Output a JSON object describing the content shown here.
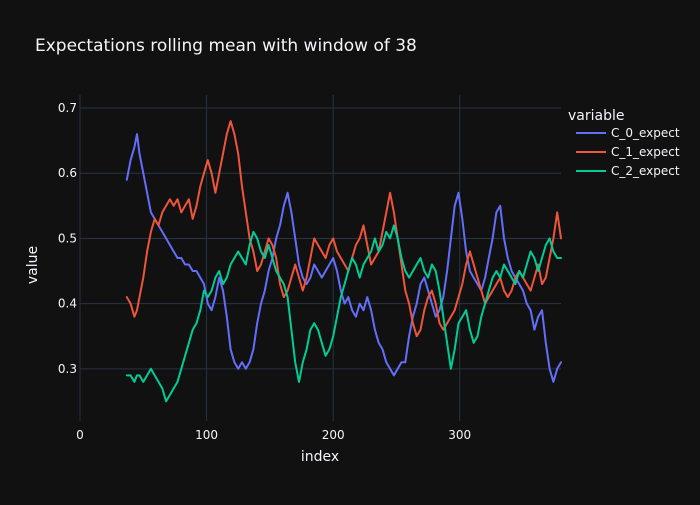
{
  "chart_data": {
    "type": "line",
    "title": "Expectations rolling mean with window of 38",
    "xlabel": "index",
    "ylabel": "value",
    "xlim": [
      0,
      380
    ],
    "ylim": [
      0.22,
      0.72
    ],
    "xticks": [
      0,
      100,
      200,
      300
    ],
    "xtick_labels": [
      "0",
      "100",
      "200",
      "300"
    ],
    "yticks": [
      0.3,
      0.4,
      0.5,
      0.6,
      0.7
    ],
    "ytick_labels": [
      "0.3",
      "0.4",
      "0.5",
      "0.6",
      "0.7"
    ],
    "grid": true,
    "legend": {
      "title": "variable",
      "placement": "right"
    },
    "series": [
      {
        "name": "C_0_expect",
        "color": "#636efa",
        "x": [
          37,
          40,
          43,
          45,
          47,
          50,
          53,
          56,
          59,
          62,
          65,
          68,
          71,
          74,
          77,
          80,
          83,
          86,
          89,
          92,
          95,
          98,
          101,
          104,
          107,
          110,
          113,
          116,
          119,
          122,
          125,
          128,
          131,
          134,
          137,
          140,
          143,
          146,
          149,
          152,
          155,
          158,
          161,
          164,
          167,
          170,
          173,
          176,
          179,
          182,
          185,
          188,
          191,
          194,
          197,
          200,
          203,
          206,
          209,
          212,
          215,
          218,
          221,
          224,
          227,
          230,
          233,
          236,
          239,
          242,
          245,
          248,
          251,
          254,
          257,
          260,
          263,
          266,
          269,
          272,
          275,
          278,
          281,
          284,
          287,
          290,
          293,
          296,
          299,
          302,
          305,
          308,
          311,
          314,
          317,
          320,
          323,
          326,
          329,
          332,
          335,
          338,
          341,
          344,
          347,
          350,
          353,
          356,
          359,
          362,
          365,
          368,
          371,
          374,
          377,
          380
        ],
        "y": [
          0.59,
          0.62,
          0.64,
          0.66,
          0.63,
          0.6,
          0.57,
          0.54,
          0.53,
          0.52,
          0.51,
          0.5,
          0.49,
          0.48,
          0.47,
          0.47,
          0.46,
          0.46,
          0.45,
          0.45,
          0.44,
          0.43,
          0.4,
          0.39,
          0.41,
          0.44,
          0.42,
          0.38,
          0.33,
          0.31,
          0.3,
          0.31,
          0.3,
          0.31,
          0.33,
          0.37,
          0.4,
          0.42,
          0.45,
          0.47,
          0.5,
          0.52,
          0.55,
          0.57,
          0.54,
          0.5,
          0.46,
          0.44,
          0.43,
          0.44,
          0.46,
          0.45,
          0.44,
          0.45,
          0.46,
          0.47,
          0.45,
          0.42,
          0.4,
          0.41,
          0.39,
          0.38,
          0.4,
          0.39,
          0.41,
          0.39,
          0.36,
          0.34,
          0.33,
          0.31,
          0.3,
          0.29,
          0.3,
          0.31,
          0.31,
          0.35,
          0.38,
          0.4,
          0.43,
          0.44,
          0.42,
          0.4,
          0.38,
          0.39,
          0.41,
          0.45,
          0.5,
          0.55,
          0.57,
          0.53,
          0.48,
          0.45,
          0.44,
          0.43,
          0.42,
          0.44,
          0.47,
          0.5,
          0.54,
          0.55,
          0.5,
          0.47,
          0.45,
          0.44,
          0.43,
          0.42,
          0.4,
          0.39,
          0.36,
          0.38,
          0.39,
          0.34,
          0.3,
          0.28,
          0.3,
          0.31
        ]
      },
      {
        "name": "C_1_expect",
        "color": "#ef553b",
        "x": [
          37,
          40,
          43,
          45,
          47,
          50,
          53,
          56,
          59,
          62,
          65,
          68,
          71,
          74,
          77,
          80,
          83,
          86,
          89,
          92,
          95,
          98,
          101,
          104,
          107,
          110,
          113,
          116,
          119,
          122,
          125,
          128,
          131,
          134,
          137,
          140,
          143,
          146,
          149,
          152,
          155,
          158,
          161,
          164,
          167,
          170,
          173,
          176,
          179,
          182,
          185,
          188,
          191,
          194,
          197,
          200,
          203,
          206,
          209,
          212,
          215,
          218,
          221,
          224,
          227,
          230,
          233,
          236,
          239,
          242,
          245,
          248,
          251,
          254,
          257,
          260,
          263,
          266,
          269,
          272,
          275,
          278,
          281,
          284,
          287,
          290,
          293,
          296,
          299,
          302,
          305,
          308,
          311,
          314,
          317,
          320,
          323,
          326,
          329,
          332,
          335,
          338,
          341,
          344,
          347,
          350,
          353,
          356,
          359,
          362,
          365,
          368,
          371,
          374,
          377,
          380
        ],
        "y": [
          0.41,
          0.4,
          0.38,
          0.39,
          0.41,
          0.44,
          0.48,
          0.51,
          0.53,
          0.52,
          0.54,
          0.55,
          0.56,
          0.55,
          0.56,
          0.54,
          0.55,
          0.56,
          0.53,
          0.55,
          0.58,
          0.6,
          0.62,
          0.6,
          0.57,
          0.6,
          0.63,
          0.66,
          0.68,
          0.66,
          0.63,
          0.58,
          0.54,
          0.5,
          0.48,
          0.45,
          0.46,
          0.48,
          0.5,
          0.49,
          0.47,
          0.43,
          0.41,
          0.42,
          0.44,
          0.46,
          0.44,
          0.42,
          0.44,
          0.47,
          0.5,
          0.49,
          0.48,
          0.47,
          0.49,
          0.5,
          0.48,
          0.47,
          0.46,
          0.45,
          0.47,
          0.49,
          0.5,
          0.52,
          0.49,
          0.46,
          0.47,
          0.48,
          0.51,
          0.54,
          0.57,
          0.54,
          0.5,
          0.46,
          0.42,
          0.4,
          0.37,
          0.35,
          0.36,
          0.39,
          0.41,
          0.42,
          0.4,
          0.37,
          0.36,
          0.37,
          0.38,
          0.39,
          0.41,
          0.43,
          0.46,
          0.48,
          0.46,
          0.44,
          0.42,
          0.4,
          0.41,
          0.42,
          0.43,
          0.44,
          0.42,
          0.41,
          0.42,
          0.44,
          0.45,
          0.44,
          0.43,
          0.42,
          0.44,
          0.46,
          0.43,
          0.44,
          0.47,
          0.5,
          0.54,
          0.5
        ]
      },
      {
        "name": "C_2_expect",
        "color": "#00cc96",
        "x": [
          37,
          40,
          43,
          45,
          47,
          50,
          53,
          56,
          59,
          62,
          65,
          68,
          71,
          74,
          77,
          80,
          83,
          86,
          89,
          92,
          95,
          98,
          101,
          104,
          107,
          110,
          113,
          116,
          119,
          122,
          125,
          128,
          131,
          134,
          137,
          140,
          143,
          146,
          149,
          152,
          155,
          158,
          161,
          164,
          167,
          170,
          173,
          176,
          179,
          182,
          185,
          188,
          191,
          194,
          197,
          200,
          203,
          206,
          209,
          212,
          215,
          218,
          221,
          224,
          227,
          230,
          233,
          236,
          239,
          242,
          245,
          248,
          251,
          254,
          257,
          260,
          263,
          266,
          269,
          272,
          275,
          278,
          281,
          284,
          287,
          290,
          293,
          296,
          299,
          302,
          305,
          308,
          311,
          314,
          317,
          320,
          323,
          326,
          329,
          332,
          335,
          338,
          341,
          344,
          347,
          350,
          353,
          356,
          359,
          362,
          365,
          368,
          371,
          374,
          377,
          380
        ],
        "y": [
          0.29,
          0.29,
          0.28,
          0.29,
          0.29,
          0.28,
          0.29,
          0.3,
          0.29,
          0.28,
          0.27,
          0.25,
          0.26,
          0.27,
          0.28,
          0.3,
          0.32,
          0.34,
          0.36,
          0.37,
          0.39,
          0.42,
          0.41,
          0.42,
          0.44,
          0.45,
          0.43,
          0.44,
          0.46,
          0.47,
          0.48,
          0.47,
          0.46,
          0.49,
          0.51,
          0.5,
          0.48,
          0.47,
          0.49,
          0.47,
          0.45,
          0.44,
          0.43,
          0.41,
          0.36,
          0.31,
          0.28,
          0.31,
          0.33,
          0.36,
          0.37,
          0.36,
          0.34,
          0.32,
          0.33,
          0.35,
          0.38,
          0.41,
          0.43,
          0.45,
          0.47,
          0.46,
          0.44,
          0.46,
          0.47,
          0.48,
          0.5,
          0.48,
          0.49,
          0.51,
          0.5,
          0.52,
          0.5,
          0.47,
          0.45,
          0.44,
          0.45,
          0.46,
          0.47,
          0.45,
          0.44,
          0.46,
          0.45,
          0.42,
          0.38,
          0.34,
          0.3,
          0.33,
          0.37,
          0.38,
          0.39,
          0.36,
          0.34,
          0.35,
          0.38,
          0.4,
          0.42,
          0.44,
          0.45,
          0.44,
          0.46,
          0.45,
          0.44,
          0.43,
          0.45,
          0.44,
          0.46,
          0.48,
          0.47,
          0.45,
          0.47,
          0.49,
          0.5,
          0.48,
          0.47,
          0.47
        ]
      }
    ]
  }
}
